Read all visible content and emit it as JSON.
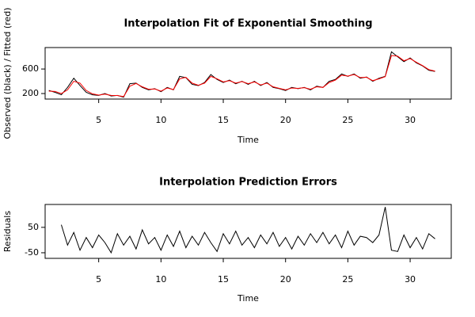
{
  "chart_data": [
    {
      "type": "line",
      "title": "Interpolation Fit of Exponential Smoothing",
      "xlabel": "Time",
      "ylabel": "Observed (black) / Fitted (red)",
      "x": [
        1,
        1.5,
        2,
        2.5,
        3,
        3.5,
        4,
        4.5,
        5,
        5.5,
        6,
        6.5,
        7,
        7.5,
        8,
        8.5,
        9,
        9.5,
        10,
        10.5,
        11,
        11.5,
        12,
        12.5,
        13,
        13.5,
        14,
        14.5,
        15,
        15.5,
        16,
        16.5,
        17,
        17.5,
        18,
        18.5,
        19,
        19.5,
        20,
        20.5,
        21,
        21.5,
        22,
        22.5,
        23,
        23.5,
        24,
        24.5,
        25,
        25.5,
        26,
        26.5,
        27,
        27.5,
        28,
        28.5,
        29,
        29.5,
        30,
        30.5,
        31,
        31.5,
        32
      ],
      "series": [
        {
          "name": "Observed",
          "color": "#000000",
          "values": [
            250,
            220,
            180,
            300,
            450,
            330,
            220,
            180,
            170,
            200,
            160,
            170,
            140,
            360,
            370,
            300,
            260,
            280,
            230,
            300,
            260,
            480,
            460,
            350,
            330,
            380,
            510,
            430,
            380,
            420,
            360,
            400,
            350,
            400,
            330,
            380,
            300,
            280,
            250,
            300,
            280,
            300,
            260,
            320,
            300,
            400,
            430,
            520,
            480,
            520,
            450,
            470,
            400,
            450,
            480,
            880,
            800,
            720,
            780,
            700,
            650,
            580,
            560
          ]
        },
        {
          "name": "Fitted",
          "color": "#ff0000",
          "values": [
            240,
            235,
            200,
            260,
            400,
            370,
            250,
            195,
            175,
            190,
            170,
            168,
            150,
            320,
            365,
            310,
            270,
            275,
            240,
            290,
            265,
            440,
            465,
            370,
            335,
            370,
            480,
            440,
            390,
            410,
            370,
            395,
            360,
            390,
            340,
            370,
            310,
            285,
            260,
            290,
            285,
            295,
            270,
            310,
            300,
            380,
            420,
            500,
            485,
            510,
            460,
            465,
            410,
            440,
            475,
            820,
            810,
            735,
            770,
            710,
            655,
            590,
            565
          ]
        }
      ],
      "xlim": [
        0.7,
        33.3
      ],
      "ylim": [
        110,
        950
      ],
      "xticks": [
        5,
        10,
        15,
        20,
        25,
        30
      ],
      "yticks": [
        200,
        600
      ]
    },
    {
      "type": "line",
      "title": "Interpolation Prediction Errors",
      "xlabel": "Time",
      "ylabel": "Residuals",
      "x": [
        2,
        2.5,
        3,
        3.5,
        4,
        4.5,
        5,
        5.5,
        6,
        6.5,
        7,
        7.5,
        8,
        8.5,
        9,
        9.5,
        10,
        10.5,
        11,
        11.5,
        12,
        12.5,
        13,
        13.5,
        14,
        14.5,
        15,
        15.5,
        16,
        16.5,
        17,
        17.5,
        18,
        18.5,
        19,
        19.5,
        20,
        20.5,
        21,
        21.5,
        22,
        22.5,
        23,
        23.5,
        24,
        24.5,
        25,
        25.5,
        26,
        26.5,
        27,
        27.5,
        28,
        28.5,
        29,
        29.5,
        30,
        30.5,
        31,
        31.5,
        32
      ],
      "series": [
        {
          "name": "Residuals",
          "color": "#000000",
          "values": [
            60,
            -20,
            30,
            -40,
            10,
            -30,
            20,
            -10,
            -50,
            25,
            -20,
            15,
            -35,
            40,
            -15,
            10,
            -40,
            20,
            -25,
            35,
            -30,
            15,
            -20,
            30,
            -10,
            -45,
            25,
            -15,
            35,
            -20,
            10,
            -30,
            20,
            -15,
            30,
            -25,
            10,
            -35,
            15,
            -20,
            25,
            -10,
            30,
            -15,
            20,
            -30,
            35,
            -20,
            15,
            10,
            -10,
            20,
            130,
            -40,
            -45,
            20,
            -30,
            10,
            -35,
            25,
            5
          ]
        }
      ],
      "xlim": [
        0.7,
        33.3
      ],
      "ylim": [
        -72,
        140
      ],
      "xticks": [
        5,
        10,
        15,
        20,
        25,
        30
      ],
      "yticks": [
        -50,
        50
      ]
    }
  ]
}
